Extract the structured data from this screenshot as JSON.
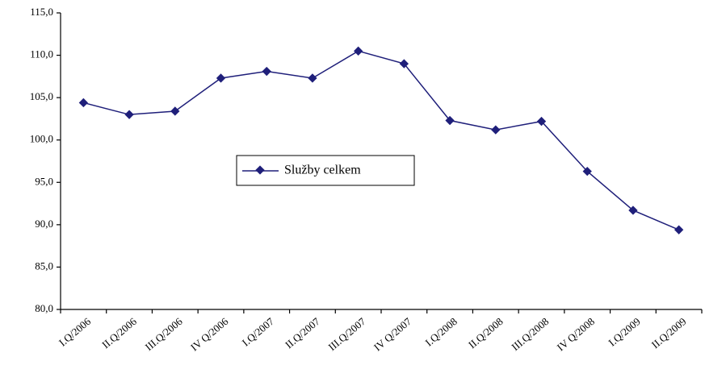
{
  "chart_data": {
    "type": "line",
    "categories": [
      "I.Q/2006",
      "II.Q/2006",
      "III.Q/2006",
      "IV Q/2006",
      "I.Q/2007",
      "II.Q/2007",
      "III.Q/2007",
      "IV Q/2007",
      "I.Q/2008",
      "II.Q/2008",
      "III.Q/2008",
      "IV Q/2008",
      "I.Q/2009",
      "II.Q/2009"
    ],
    "series": [
      {
        "name": "Služby celkem",
        "color": "#1f1f7a",
        "values": [
          104.4,
          103.0,
          103.4,
          107.3,
          108.1,
          107.3,
          110.5,
          109.0,
          102.3,
          101.2,
          102.2,
          96.3,
          91.7,
          89.4
        ]
      }
    ],
    "ylim": [
      80,
      115
    ],
    "yticks": [
      {
        "value": 80,
        "label": "80,0"
      },
      {
        "value": 85,
        "label": "85,0"
      },
      {
        "value": 90,
        "label": "90,0"
      },
      {
        "value": 95,
        "label": "95,0"
      },
      {
        "value": 100,
        "label": "100,0"
      },
      {
        "value": 105,
        "label": "105,0"
      },
      {
        "value": 110,
        "label": "110,0"
      },
      {
        "value": 115,
        "label": "115,0"
      }
    ],
    "grid": false
  }
}
